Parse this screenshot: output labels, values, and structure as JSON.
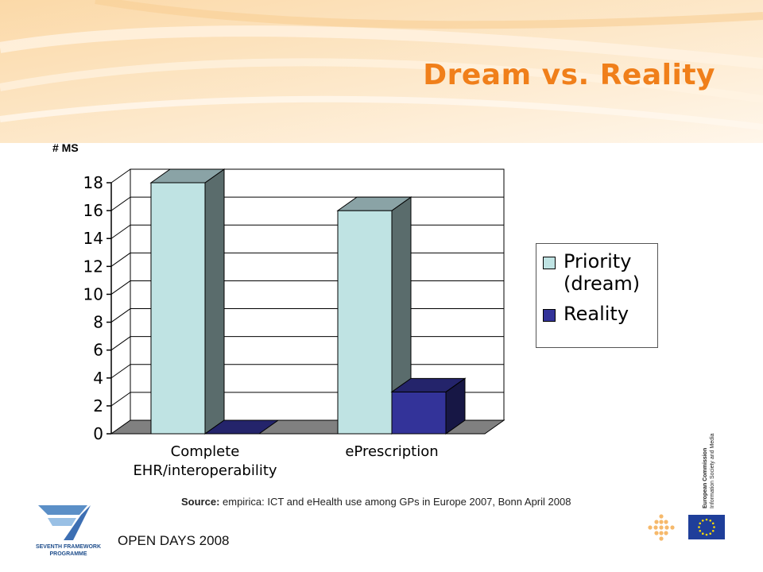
{
  "slide": {
    "title": "Dream vs. Reality",
    "footer": "OPEN DAYS 2008",
    "source_label": "Source:",
    "source_text": " empirica: ICT and eHealth use among GPs in Europe 2007, Bonn April 2008",
    "logo_text_1": "SEVENTH FRAMEWORK",
    "logo_text_2": "PROGRAMME",
    "ec_line_1": "European Commission",
    "ec_line_2": "Information Society and Media"
  },
  "colors": {
    "priority": "#bfe3e3",
    "reality": "#333399",
    "title": "#f07f1a",
    "floor": "#808080"
  },
  "chart_data": {
    "type": "bar",
    "categories": [
      "Complete EHR/interoperability",
      "ePrescription"
    ],
    "category_lines": [
      [
        "Complete",
        "EHR/interoperability"
      ],
      [
        "ePrescription"
      ]
    ],
    "series": [
      {
        "name": "Priority (dream)",
        "legend_lines": [
          "Priority",
          "(dream)"
        ],
        "values": [
          18,
          16
        ]
      },
      {
        "name": "Reality",
        "legend_lines": [
          "Reality"
        ],
        "values": [
          0,
          3
        ]
      }
    ],
    "ylabel": "# MS",
    "ylim": [
      0,
      18
    ],
    "yticks": [
      0,
      2,
      4,
      6,
      8,
      10,
      12,
      14,
      16,
      18
    ],
    "grid": true,
    "legend_position": "right",
    "style": "3d"
  }
}
